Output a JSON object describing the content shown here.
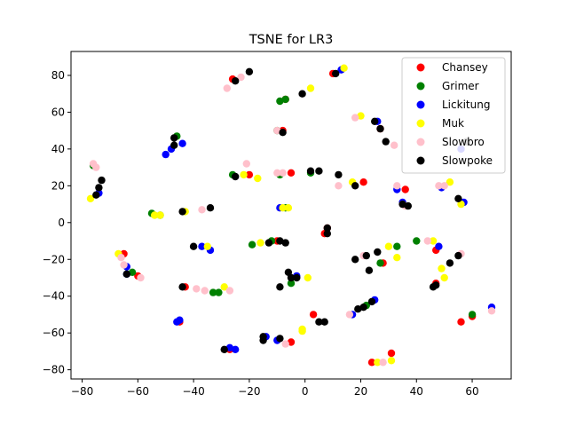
{
  "chart_data": {
    "type": "scatter",
    "title": "TSNE for LR3",
    "xlabel": "",
    "ylabel": "",
    "xlim": [
      -84,
      74
    ],
    "ylim": [
      -85,
      93
    ],
    "xticks": [
      -80,
      -60,
      -40,
      -20,
      0,
      20,
      40,
      60
    ],
    "yticks": [
      -80,
      -60,
      -40,
      -20,
      0,
      20,
      40,
      60,
      80
    ],
    "grid": false,
    "legend_position": "top-right",
    "series": [
      {
        "name": "Chansey",
        "color": "#ff0000",
        "points": [
          [
            -26,
            78
          ],
          [
            -7,
            67
          ],
          [
            10,
            81
          ],
          [
            27,
            51
          ],
          [
            -45,
            -54
          ],
          [
            -43,
            -35
          ],
          [
            -65,
            -17
          ],
          [
            8,
            -3
          ],
          [
            7,
            -6
          ],
          [
            21,
            22
          ],
          [
            36,
            18
          ],
          [
            -20,
            26
          ],
          [
            -27,
            -69
          ],
          [
            -5,
            -65
          ],
          [
            31,
            -71
          ],
          [
            24,
            -76
          ],
          [
            28,
            -22
          ],
          [
            47,
            -15
          ],
          [
            56,
            -54
          ],
          [
            60,
            -51
          ],
          [
            47,
            -33
          ],
          [
            -8,
            50
          ],
          [
            3,
            -50
          ],
          [
            -10,
            -10
          ],
          [
            -60,
            -29
          ],
          [
            -5,
            27
          ]
        ]
      },
      {
        "name": "Grimer",
        "color": "#008000",
        "points": [
          [
            -9,
            66
          ],
          [
            -7,
            67
          ],
          [
            -76,
            31
          ],
          [
            -46,
            47
          ],
          [
            -55,
            5
          ],
          [
            -33,
            -38
          ],
          [
            -31,
            -38
          ],
          [
            -19,
            -12
          ],
          [
            -12,
            -10
          ],
          [
            -64,
            -28
          ],
          [
            -62,
            -27
          ],
          [
            -7,
            8
          ],
          [
            2,
            27
          ],
          [
            -26,
            26
          ],
          [
            -9,
            26
          ],
          [
            -10,
            50
          ],
          [
            33,
            -13
          ],
          [
            22,
            -45
          ],
          [
            27,
            -22
          ],
          [
            60,
            -50
          ],
          [
            40,
            -10
          ],
          [
            -5,
            -33
          ],
          [
            -52,
            4
          ]
        ]
      },
      {
        "name": "Lickitung",
        "color": "#0000ff",
        "points": [
          [
            13,
            83
          ],
          [
            -74,
            16
          ],
          [
            -50,
            37
          ],
          [
            -48,
            40
          ],
          [
            -44,
            43
          ],
          [
            -46,
            -54
          ],
          [
            -45,
            -53
          ],
          [
            -27,
            -68
          ],
          [
            -25,
            -69
          ],
          [
            -9,
            8
          ],
          [
            -34,
            -15
          ],
          [
            -37,
            -13
          ],
          [
            -64,
            -24
          ],
          [
            -10,
            -64
          ],
          [
            -14,
            -62
          ],
          [
            17,
            -50
          ],
          [
            25,
            -42
          ],
          [
            33,
            18
          ],
          [
            35,
            11
          ],
          [
            57,
            11
          ],
          [
            56,
            40
          ],
          [
            48,
            -13
          ],
          [
            67,
            -46
          ],
          [
            26,
            55
          ],
          [
            -3,
            -29
          ],
          [
            -64,
            -28
          ],
          [
            49,
            19
          ]
        ]
      },
      {
        "name": "Muk",
        "color": "#ffff00",
        "points": [
          [
            14,
            84
          ],
          [
            2,
            73
          ],
          [
            -54,
            4
          ],
          [
            -52,
            4
          ],
          [
            -29,
            -35
          ],
          [
            -35,
            -13
          ],
          [
            -22,
            26
          ],
          [
            -17,
            24
          ],
          [
            -8,
            8
          ],
          [
            -6,
            8
          ],
          [
            1,
            -30
          ],
          [
            -1,
            -59
          ],
          [
            20,
            58
          ],
          [
            17,
            22
          ],
          [
            30,
            -13
          ],
          [
            26,
            -76
          ],
          [
            31,
            -75
          ],
          [
            49,
            -25
          ],
          [
            50,
            -30
          ],
          [
            52,
            22
          ],
          [
            56,
            10
          ],
          [
            -67,
            -17
          ],
          [
            -43,
            6
          ],
          [
            -16,
            -11
          ],
          [
            33,
            -19
          ],
          [
            -1,
            -58
          ],
          [
            46,
            -10
          ],
          [
            -77,
            13
          ]
        ]
      },
      {
        "name": "Slowbro",
        "color": "#ffc0cb",
        "points": [
          [
            -28,
            73
          ],
          [
            -23,
            79
          ],
          [
            -76,
            32
          ],
          [
            -75,
            30
          ],
          [
            -21,
            32
          ],
          [
            -27,
            -37
          ],
          [
            -36,
            -37
          ],
          [
            -39,
            -36
          ],
          [
            -59,
            -30
          ],
          [
            -66,
            -19
          ],
          [
            -65,
            -23
          ],
          [
            -8,
            27
          ],
          [
            -10,
            27
          ],
          [
            -37,
            7
          ],
          [
            -10,
            50
          ],
          [
            18,
            57
          ],
          [
            12,
            20
          ],
          [
            21,
            -18
          ],
          [
            16,
            -50
          ],
          [
            32,
            42
          ],
          [
            35,
            10
          ],
          [
            36,
            9
          ],
          [
            44,
            -10
          ],
          [
            48,
            20
          ],
          [
            50,
            20
          ],
          [
            56,
            -17
          ],
          [
            67,
            -48
          ],
          [
            -7,
            -66
          ],
          [
            28,
            -76
          ],
          [
            33,
            20
          ]
        ]
      },
      {
        "name": "Slowpoke",
        "color": "#000000",
        "points": [
          [
            -20,
            82
          ],
          [
            -25,
            77
          ],
          [
            -1,
            70
          ],
          [
            11,
            81
          ],
          [
            -73,
            23
          ],
          [
            -74,
            19
          ],
          [
            -75,
            15
          ],
          [
            -47,
            46
          ],
          [
            -47,
            42
          ],
          [
            -34,
            8
          ],
          [
            -44,
            6
          ],
          [
            -40,
            -13
          ],
          [
            -44,
            -35
          ],
          [
            -29,
            -69
          ],
          [
            -8,
            49
          ],
          [
            2,
            28
          ],
          [
            5,
            28
          ],
          [
            12,
            26
          ],
          [
            18,
            20
          ],
          [
            25,
            55
          ],
          [
            27,
            51
          ],
          [
            29,
            44
          ],
          [
            8,
            -6
          ],
          [
            8,
            -3
          ],
          [
            -13,
            -11
          ],
          [
            -9,
            -10
          ],
          [
            -6,
            -27
          ],
          [
            -9,
            -35
          ],
          [
            -5,
            -30
          ],
          [
            -3,
            -30
          ],
          [
            -15,
            -64
          ],
          [
            -15,
            -62
          ],
          [
            -9,
            -63
          ],
          [
            5,
            -54
          ],
          [
            7,
            -54
          ],
          [
            19,
            -47
          ],
          [
            21,
            -46
          ],
          [
            24,
            -43
          ],
          [
            18,
            -20
          ],
          [
            22,
            -18
          ],
          [
            26,
            -16
          ],
          [
            23,
            -26
          ],
          [
            35,
            10
          ],
          [
            37,
            9
          ],
          [
            55,
            13
          ],
          [
            58,
            44
          ],
          [
            46,
            -35
          ],
          [
            47,
            -34
          ],
          [
            52,
            -22
          ],
          [
            55,
            -18
          ],
          [
            -64,
            -28
          ],
          [
            -25,
            25
          ],
          [
            -7,
            -11
          ]
        ]
      }
    ]
  }
}
